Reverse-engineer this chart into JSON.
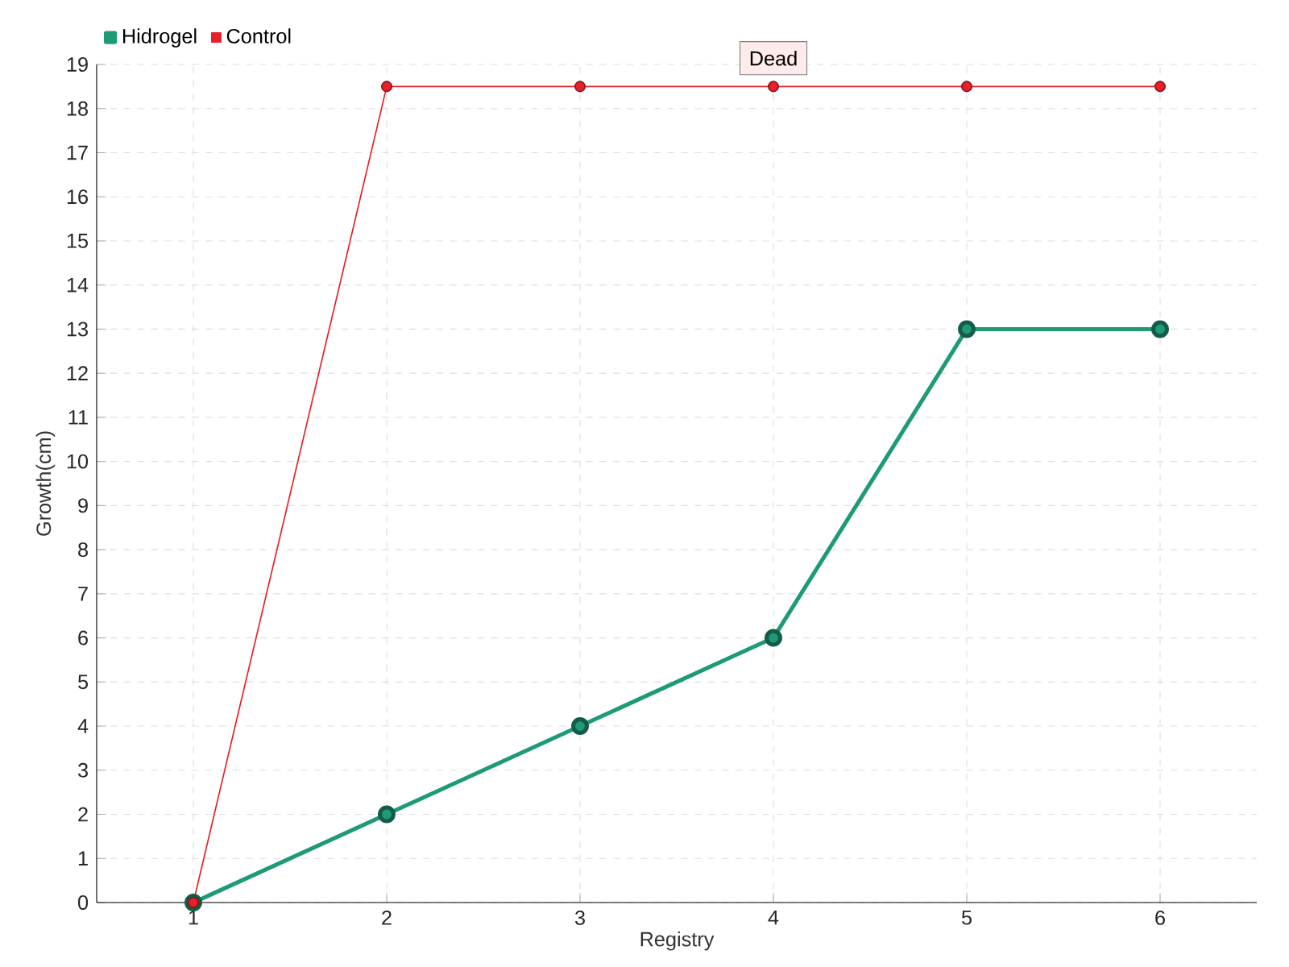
{
  "chart_data": {
    "type": "line",
    "xlabel": "Registry",
    "ylabel": "Growth(cm)",
    "x": [
      1,
      2,
      3,
      4,
      5,
      6
    ],
    "series": [
      {
        "name": "Hidrogel",
        "color": "#1f9a78",
        "values": [
          0,
          2,
          4,
          6,
          13,
          13
        ]
      },
      {
        "name": "Control",
        "color": "#e8202a",
        "values": [
          0,
          18.5,
          18.5,
          18.5,
          18.5,
          18.5
        ]
      }
    ],
    "xlim": [
      0.5,
      6.5
    ],
    "ylim": [
      0,
      19
    ],
    "xticks": [
      1,
      2,
      3,
      4,
      5,
      6
    ],
    "yticks": [
      0,
      1,
      2,
      3,
      4,
      5,
      6,
      7,
      8,
      9,
      10,
      11,
      12,
      13,
      14,
      15,
      16,
      17,
      18,
      19
    ],
    "annotations": [
      {
        "text": "Dead",
        "x": 4,
        "y": 18.5
      }
    ],
    "grid": true,
    "legend": "top left",
    "marker": "circle",
    "line_style": "solid"
  }
}
